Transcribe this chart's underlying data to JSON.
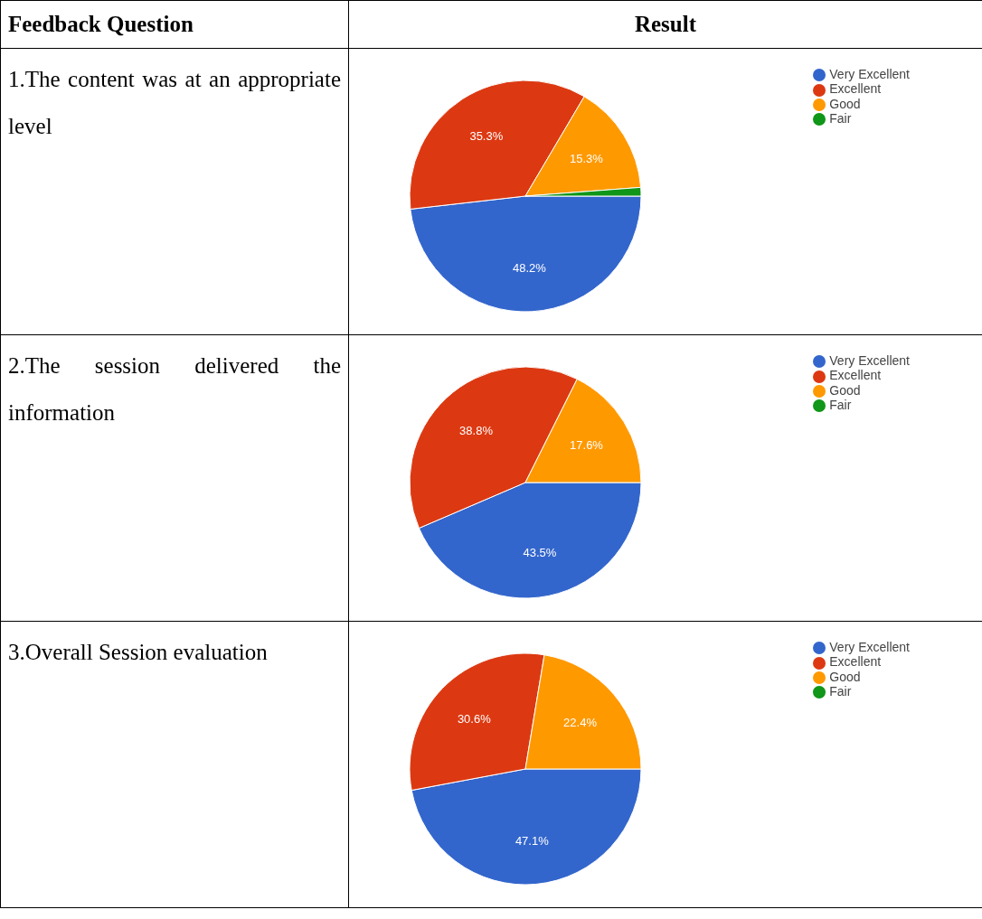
{
  "chart_data": [
    {
      "type": "pie",
      "title": "1.The content was at an appropriate level",
      "annotations": [
        "Feedback Question",
        "Result"
      ],
      "categories": [
        "Very Excellent",
        "Excellent",
        "Good",
        "Fair"
      ],
      "values": [
        48.2,
        35.3,
        15.3,
        1.2
      ],
      "value_labels": [
        "48.2%",
        "35.3%",
        "15.3%",
        null
      ],
      "colors": [
        "#3366cc",
        "#dc3912",
        "#ff9900",
        "#109618"
      ],
      "legend": "top right"
    },
    {
      "type": "pie",
      "title": "2.The session delivered the information",
      "categories": [
        "Very Excellent",
        "Excellent",
        "Good",
        "Fair"
      ],
      "values": [
        43.5,
        38.8,
        17.6,
        0
      ],
      "value_labels": [
        "43.5%",
        "38.8%",
        "17.6%",
        null
      ],
      "colors": [
        "#3366cc",
        "#dc3912",
        "#ff9900",
        "#109618"
      ],
      "legend": "top right"
    },
    {
      "type": "pie",
      "title": "3.Overall Session evaluation",
      "categories": [
        "Very Excellent",
        "Excellent",
        "Good",
        "Fair"
      ],
      "values": [
        47.1,
        30.6,
        22.4,
        0
      ],
      "value_labels": [
        "47.1%",
        "30.6%",
        "22.4%",
        null
      ],
      "colors": [
        "#3366cc",
        "#dc3912",
        "#ff9900",
        "#109618"
      ],
      "legend": "top right"
    }
  ]
}
